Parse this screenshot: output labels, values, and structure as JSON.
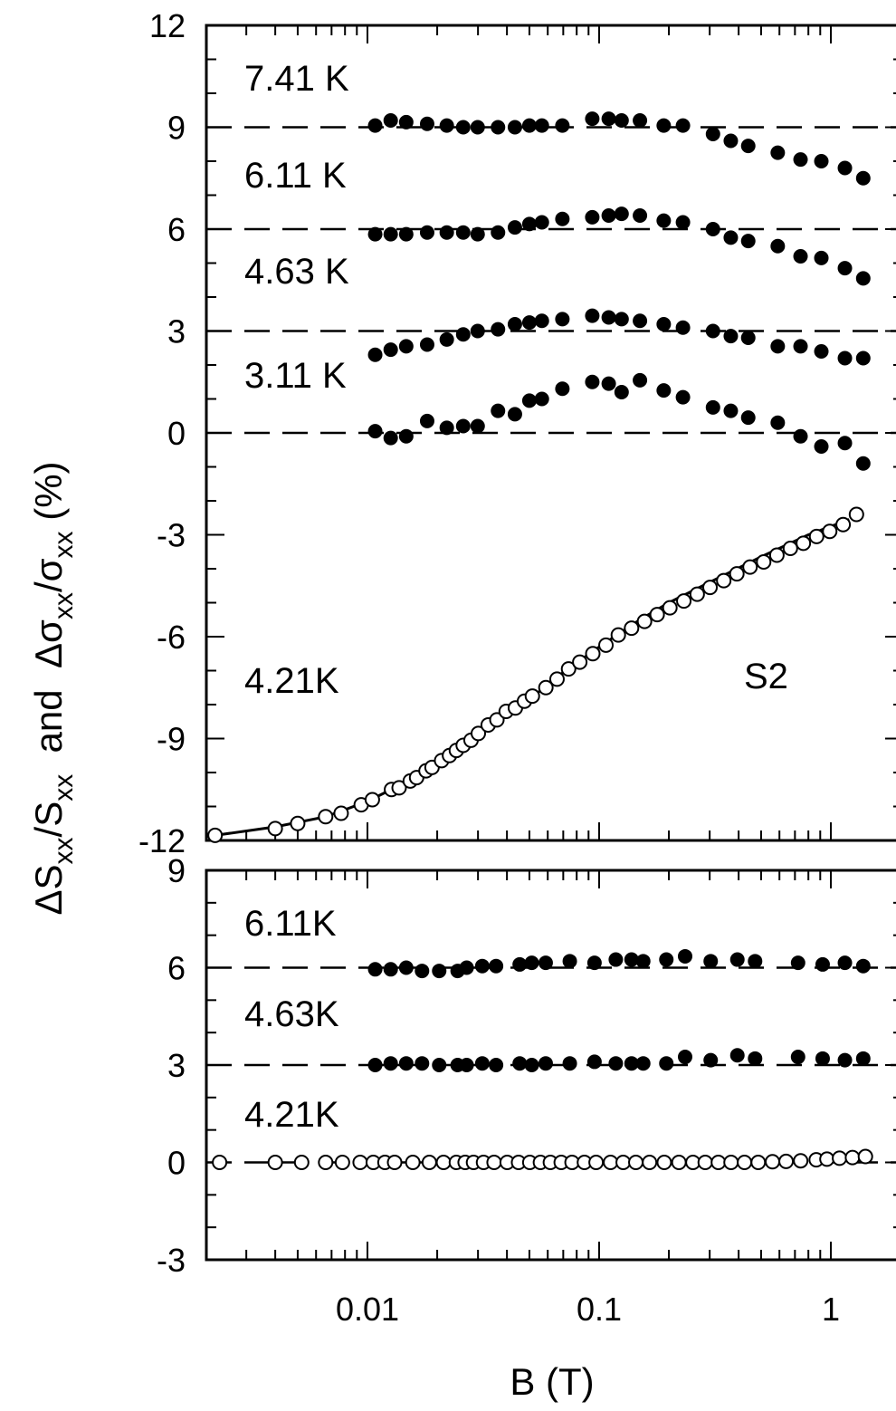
{
  "chart_data": [
    {
      "type": "scatter",
      "panel": "top",
      "ylim": [
        -12,
        12
      ],
      "xlim": [
        0.002,
        1.5
      ],
      "xscale": "log",
      "yticks": [
        "12",
        "9",
        "6",
        "3",
        "0",
        "-3",
        "-6",
        "-9",
        "-12"
      ],
      "annotation": "S2",
      "baselines": [
        9,
        6,
        3,
        0,
        -12
      ],
      "series": [
        {
          "label": "7.41 K",
          "marker": "filled-circle",
          "baseline": 9,
          "x": [
            0.0108,
            0.0126,
            0.0147,
            0.0181,
            0.022,
            0.0259,
            0.0299,
            0.0366,
            0.0433,
            0.05,
            0.0566,
            0.0694,
            0.0934,
            0.11,
            0.125,
            0.15,
            0.19,
            0.23,
            0.31,
            0.37,
            0.44,
            0.59,
            0.74,
            0.91,
            1.15,
            1.38
          ],
          "y": [
            9.05,
            9.2,
            9.15,
            9.1,
            9.05,
            9.0,
            9.0,
            9.0,
            9.0,
            9.05,
            9.05,
            9.05,
            9.25,
            9.25,
            9.2,
            9.2,
            9.05,
            9.05,
            8.8,
            8.6,
            8.45,
            8.25,
            8.05,
            8.0,
            7.8,
            7.5
          ]
        },
        {
          "label": "6.11 K",
          "marker": "filled-circle",
          "baseline": 6,
          "x": [
            0.0108,
            0.0126,
            0.0147,
            0.0181,
            0.022,
            0.0259,
            0.0299,
            0.0366,
            0.0433,
            0.05,
            0.0566,
            0.0694,
            0.0934,
            0.11,
            0.125,
            0.15,
            0.19,
            0.23,
            0.31,
            0.37,
            0.44,
            0.59,
            0.74,
            0.91,
            1.15,
            1.38
          ],
          "y": [
            5.85,
            5.85,
            5.85,
            5.9,
            5.9,
            5.9,
            5.85,
            5.9,
            6.05,
            6.15,
            6.2,
            6.3,
            6.35,
            6.4,
            6.45,
            6.4,
            6.25,
            6.2,
            6.0,
            5.75,
            5.65,
            5.5,
            5.2,
            5.15,
            4.85,
            4.55
          ]
        },
        {
          "label": "4.63 K",
          "marker": "filled-circle",
          "baseline": 3,
          "x": [
            0.0108,
            0.0126,
            0.0147,
            0.0181,
            0.022,
            0.0259,
            0.0299,
            0.0366,
            0.0433,
            0.05,
            0.0566,
            0.0694,
            0.0934,
            0.11,
            0.125,
            0.15,
            0.19,
            0.23,
            0.31,
            0.37,
            0.44,
            0.59,
            0.74,
            0.91,
            1.15,
            1.38
          ],
          "y": [
            2.3,
            2.45,
            2.55,
            2.6,
            2.75,
            2.9,
            3.0,
            3.05,
            3.2,
            3.25,
            3.3,
            3.35,
            3.45,
            3.4,
            3.35,
            3.3,
            3.2,
            3.1,
            3.0,
            2.85,
            2.8,
            2.55,
            2.55,
            2.4,
            2.2,
            2.2
          ]
        },
        {
          "label": "3.11 K",
          "marker": "filled-circle",
          "baseline": 0,
          "x": [
            0.0108,
            0.0126,
            0.0147,
            0.0181,
            0.022,
            0.0259,
            0.0299,
            0.0366,
            0.0433,
            0.05,
            0.0566,
            0.0694,
            0.0934,
            0.11,
            0.125,
            0.15,
            0.19,
            0.23,
            0.31,
            0.37,
            0.44,
            0.59,
            0.74,
            0.91,
            1.15,
            1.38
          ],
          "y": [
            0.05,
            -0.15,
            -0.1,
            0.35,
            0.15,
            0.2,
            0.2,
            0.65,
            0.55,
            0.95,
            1.0,
            1.3,
            1.5,
            1.45,
            1.2,
            1.55,
            1.25,
            1.05,
            0.75,
            0.65,
            0.45,
            0.3,
            -0.1,
            -0.4,
            -0.3,
            -0.9
          ]
        },
        {
          "label": "4.21K",
          "marker": "open-circle",
          "baseline": -12,
          "x": [
            0.0022,
            0.004,
            0.005,
            0.0066,
            0.0077,
            0.0094,
            0.0105,
            0.0127,
            0.0137,
            0.0153,
            0.0163,
            0.0179,
            0.019,
            0.0209,
            0.0226,
            0.0242,
            0.0259,
            0.028,
            0.0301,
            0.0332,
            0.0362,
            0.0397,
            0.0435,
            0.0476,
            0.0515,
            0.0589,
            0.0658,
            0.0738,
            0.0825,
            0.0939,
            0.107,
            0.121,
            0.138,
            0.157,
            0.178,
            0.202,
            0.232,
            0.265,
            0.301,
            0.345,
            0.393,
            0.448,
            0.513,
            0.585,
            0.669,
            0.761,
            0.868,
            0.989,
            1.13,
            1.29
          ],
          "y": [
            -11.85,
            -11.65,
            -11.5,
            -11.3,
            -11.2,
            -10.95,
            -10.8,
            -10.5,
            -10.45,
            -10.25,
            -10.15,
            -9.95,
            -9.85,
            -9.65,
            -9.5,
            -9.35,
            -9.2,
            -9.05,
            -8.85,
            -8.6,
            -8.45,
            -8.2,
            -8.1,
            -7.9,
            -7.75,
            -7.5,
            -7.25,
            -6.95,
            -6.75,
            -6.5,
            -6.25,
            -5.95,
            -5.75,
            -5.55,
            -5.35,
            -5.15,
            -4.95,
            -4.75,
            -4.55,
            -4.35,
            -4.15,
            -3.95,
            -3.8,
            -3.6,
            -3.4,
            -3.25,
            -3.05,
            -2.9,
            -2.7,
            -2.4
          ]
        }
      ],
      "fit_line": {
        "x": [
          0.0022,
          0.004,
          0.0066,
          0.01,
          0.015,
          0.02,
          0.03,
          0.04,
          0.05,
          0.07,
          0.1,
          0.15,
          0.2,
          0.3,
          0.5,
          0.8,
          1.2
        ],
        "y": [
          -11.85,
          -11.6,
          -11.3,
          -10.85,
          -10.25,
          -9.75,
          -8.9,
          -8.3,
          -7.85,
          -7.05,
          -6.3,
          -5.5,
          -5.0,
          -4.4,
          -3.65,
          -3.0,
          -2.55
        ]
      }
    },
    {
      "type": "scatter",
      "panel": "bottom",
      "ylim": [
        -3,
        9
      ],
      "xlim": [
        0.002,
        1.5
      ],
      "xscale": "log",
      "yticks": [
        "9",
        "6",
        "3",
        "0",
        "-3"
      ],
      "baselines": [
        6,
        3,
        0
      ],
      "series": [
        {
          "label": "6.11K",
          "marker": "filled-circle",
          "baseline": 6,
          "x": [
            0.0108,
            0.0126,
            0.0147,
            0.0172,
            0.0204,
            0.0245,
            0.0268,
            0.0313,
            0.0359,
            0.0454,
            0.0512,
            0.0588,
            0.0747,
            0.0955,
            0.118,
            0.138,
            0.155,
            0.195,
            0.235,
            0.303,
            0.395,
            0.471,
            0.722,
            0.922,
            1.15,
            1.38
          ],
          "y": [
            5.95,
            5.95,
            6.0,
            5.9,
            5.9,
            5.9,
            6.0,
            6.05,
            6.05,
            6.1,
            6.15,
            6.15,
            6.2,
            6.15,
            6.25,
            6.25,
            6.2,
            6.25,
            6.35,
            6.2,
            6.25,
            6.2,
            6.15,
            6.1,
            6.15,
            6.05
          ]
        },
        {
          "label": "4.63K",
          "marker": "filled-circle",
          "baseline": 3,
          "x": [
            0.0108,
            0.0126,
            0.0147,
            0.0172,
            0.0204,
            0.0245,
            0.0268,
            0.0313,
            0.0359,
            0.0454,
            0.0512,
            0.0588,
            0.0747,
            0.0955,
            0.118,
            0.138,
            0.155,
            0.195,
            0.235,
            0.303,
            0.395,
            0.471,
            0.722,
            0.922,
            1.15,
            1.38
          ],
          "y": [
            3.0,
            3.05,
            3.05,
            3.05,
            3.0,
            3.0,
            3.0,
            3.05,
            3.0,
            3.05,
            3.0,
            3.05,
            3.05,
            3.1,
            3.05,
            3.05,
            3.05,
            3.05,
            3.25,
            3.15,
            3.3,
            3.2,
            3.25,
            3.2,
            3.15,
            3.2
          ]
        },
        {
          "label": "4.21K",
          "marker": "open-circle",
          "baseline": 0,
          "x": [
            0.0023,
            0.004,
            0.0052,
            0.0066,
            0.0078,
            0.0093,
            0.0106,
            0.0119,
            0.0131,
            0.0157,
            0.0185,
            0.0213,
            0.0242,
            0.0264,
            0.0287,
            0.0317,
            0.0352,
            0.0401,
            0.0449,
            0.0502,
            0.0558,
            0.0616,
            0.0686,
            0.0764,
            0.0864,
            0.097,
            0.112,
            0.127,
            0.144,
            0.165,
            0.191,
            0.221,
            0.254,
            0.287,
            0.327,
            0.371,
            0.424,
            0.486,
            0.56,
            0.641,
            0.741,
            0.865,
            0.962,
            1.09,
            1.24,
            1.41
          ],
          "y": [
            0,
            0,
            0,
            0,
            0,
            0,
            0,
            0,
            0,
            0,
            0,
            0,
            0,
            0,
            0,
            0,
            0,
            0,
            0,
            0,
            0,
            0,
            0,
            0,
            0,
            0,
            0,
            0,
            0,
            0,
            0,
            0,
            0,
            0,
            0,
            0,
            0,
            0,
            0.02,
            0.03,
            0.05,
            0.08,
            0.1,
            0.13,
            0.15,
            0.18
          ]
        }
      ]
    }
  ],
  "x_axis": {
    "ticks": [
      "0.01",
      "0.1",
      "1"
    ],
    "title": "B (T)"
  },
  "y_axis": {
    "title_parts": [
      "ΔS",
      "xx",
      "/S",
      "xx",
      "  and  Δσ",
      "xx",
      "/σ",
      "xx",
      " (%)"
    ]
  }
}
